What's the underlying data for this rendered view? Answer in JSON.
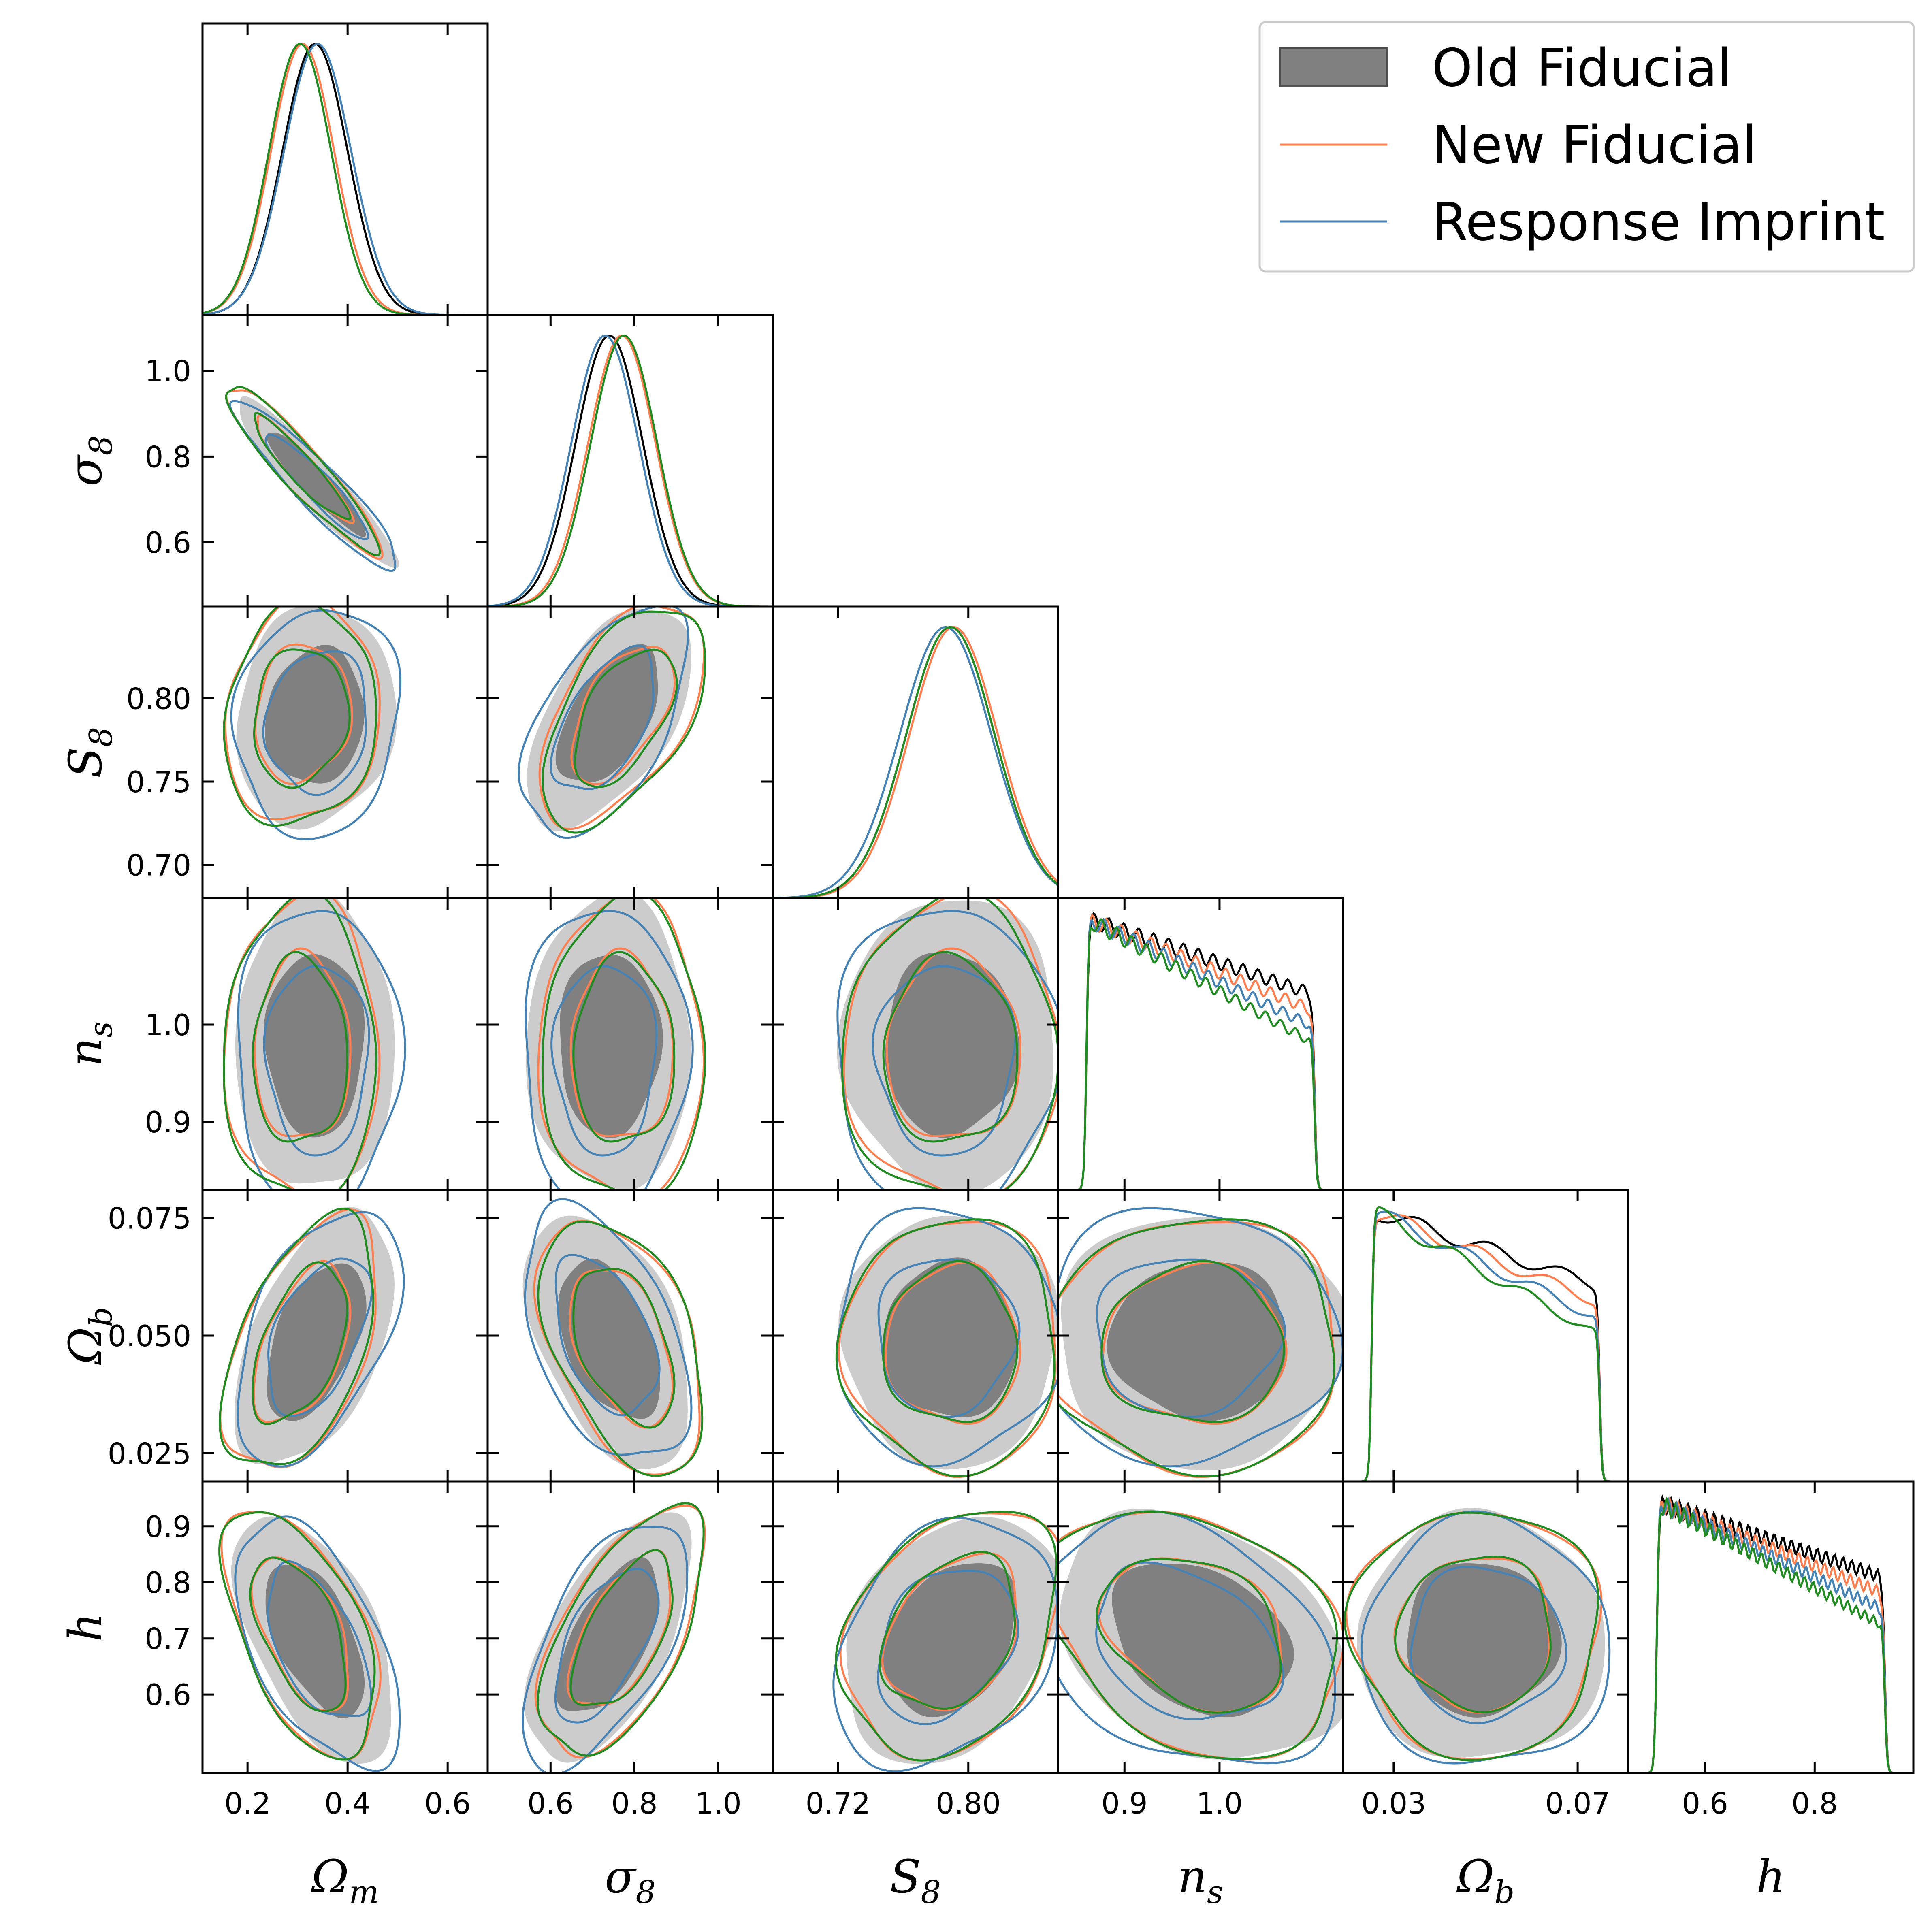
{
  "chart_data": {
    "type": "corner",
    "parameters": [
      {
        "label": "Ωm",
        "sym": "Ω",
        "sub": "m",
        "ticks": [
          0.2,
          0.4,
          0.6
        ],
        "tick_labels": [
          "0.2",
          "0.4",
          "0.6"
        ]
      },
      {
        "label": "σ8",
        "sym": "σ",
        "sub": "8",
        "ticks": [
          0.6,
          0.8,
          1.0
        ],
        "tick_labels": [
          "0.6",
          "0.8",
          "1.0"
        ]
      },
      {
        "label": "S8",
        "sym": "S",
        "sub": "8",
        "ticks": [
          0.72,
          0.8
        ],
        "tick_labels": [
          "0.72",
          "0.80"
        ]
      },
      {
        "label": "ns",
        "sym": "n",
        "sub": "s",
        "ticks": [
          0.9,
          1.0
        ],
        "tick_labels": [
          "0.9",
          "1.0"
        ]
      },
      {
        "label": "Ωb",
        "sym": "Ω",
        "sub": "b",
        "ticks": [
          0.03,
          0.07
        ],
        "tick_labels": [
          "0.03",
          "0.07"
        ]
      },
      {
        "label": "h",
        "sym": "h",
        "sub": "",
        "ticks": [
          0.6,
          0.8
        ],
        "tick_labels": [
          "0.6",
          "0.8"
        ]
      }
    ],
    "y_axes": [
      {
        "label": "σ8",
        "sym": "σ",
        "sub": "8",
        "ticks": [
          0.6,
          0.8,
          1.0
        ],
        "tick_labels": [
          "0.6",
          "0.8",
          "1.0"
        ]
      },
      {
        "label": "S8",
        "sym": "S",
        "sub": "8",
        "ticks": [
          0.7,
          0.75,
          0.8
        ],
        "tick_labels": [
          "0.70",
          "0.75",
          "0.80"
        ]
      },
      {
        "label": "ns",
        "sym": "n",
        "sub": "s",
        "ticks": [
          0.9,
          1.0
        ],
        "tick_labels": [
          "0.9",
          "1.0"
        ]
      },
      {
        "label": "Ωb",
        "sym": "Ω",
        "sub": "b",
        "ticks": [
          0.025,
          0.05,
          0.075
        ],
        "tick_labels": [
          "0.025",
          "0.050",
          "0.075"
        ]
      },
      {
        "label": "h",
        "sym": "h",
        "sub": "",
        "ticks": [
          0.6,
          0.7,
          0.8,
          0.9
        ],
        "tick_labels": [
          "0.6",
          "0.7",
          "0.8",
          "0.9"
        ]
      }
    ],
    "ranges": [
      [
        0.11,
        0.68
      ],
      [
        0.45,
        1.13
      ],
      [
        0.68,
        0.855
      ],
      [
        0.83,
        1.13
      ],
      [
        0.019,
        0.081
      ],
      [
        0.46,
        0.98
      ]
    ],
    "posteriors": {
      "Old Fiducial": {
        "mean": [
          0.335,
          0.74,
          0.789,
          0.98,
          0.049,
          0.7
        ],
        "sigma": [
          0.065,
          0.08,
          0.027,
          0.062,
          0.011,
          0.09
        ],
        "correlation": {
          "0-1": -0.93,
          "0-2": 0.1,
          "0-4": 0.5,
          "0-5": -0.55,
          "1-2": 0.55,
          "1-4": -0.45,
          "1-5": 0.6,
          "2-5": 0.3,
          "3-5": -0.3
        }
      },
      "New Fiducial": {
        "mean": [
          0.31,
          0.77,
          0.791,
          0.975,
          0.048,
          0.71
        ],
        "sigma": [
          0.063,
          0.08,
          0.027,
          0.063,
          0.011,
          0.09
        ]
      },
      "Response Imprint": {
        "mean": [
          0.34,
          0.73,
          0.786,
          0.965,
          0.05,
          0.69
        ],
        "sigma": [
          0.067,
          0.08,
          0.028,
          0.064,
          0.011,
          0.09
        ]
      },
      "Fourth curve (unlabeled)": {
        "mean": [
          0.305,
          0.775,
          0.789,
          0.972,
          0.048,
          0.71
        ],
        "sigma": [
          0.062,
          0.079,
          0.027,
          0.063,
          0.011,
          0.09
        ]
      }
    },
    "series": [
      {
        "name": "Old Fiducial",
        "style": "filled",
        "color": "#808080",
        "light_color": "#cccccc"
      },
      {
        "name": "New Fiducial",
        "style": "line",
        "color": "#ff7f50"
      },
      {
        "name": "Response Imprint",
        "style": "line",
        "color": "#4682b4"
      },
      {
        "style": "line",
        "color": "#228b22"
      }
    ],
    "legend_placement": "top-right",
    "grid": false
  },
  "legend": [
    {
      "label": "Old Fiducial",
      "kind": "patch",
      "color": "#808080"
    },
    {
      "label": "New Fiducial",
      "kind": "line",
      "color": "#ff7f50"
    },
    {
      "label": "Response Imprint",
      "kind": "line",
      "color": "#4682b4"
    }
  ]
}
